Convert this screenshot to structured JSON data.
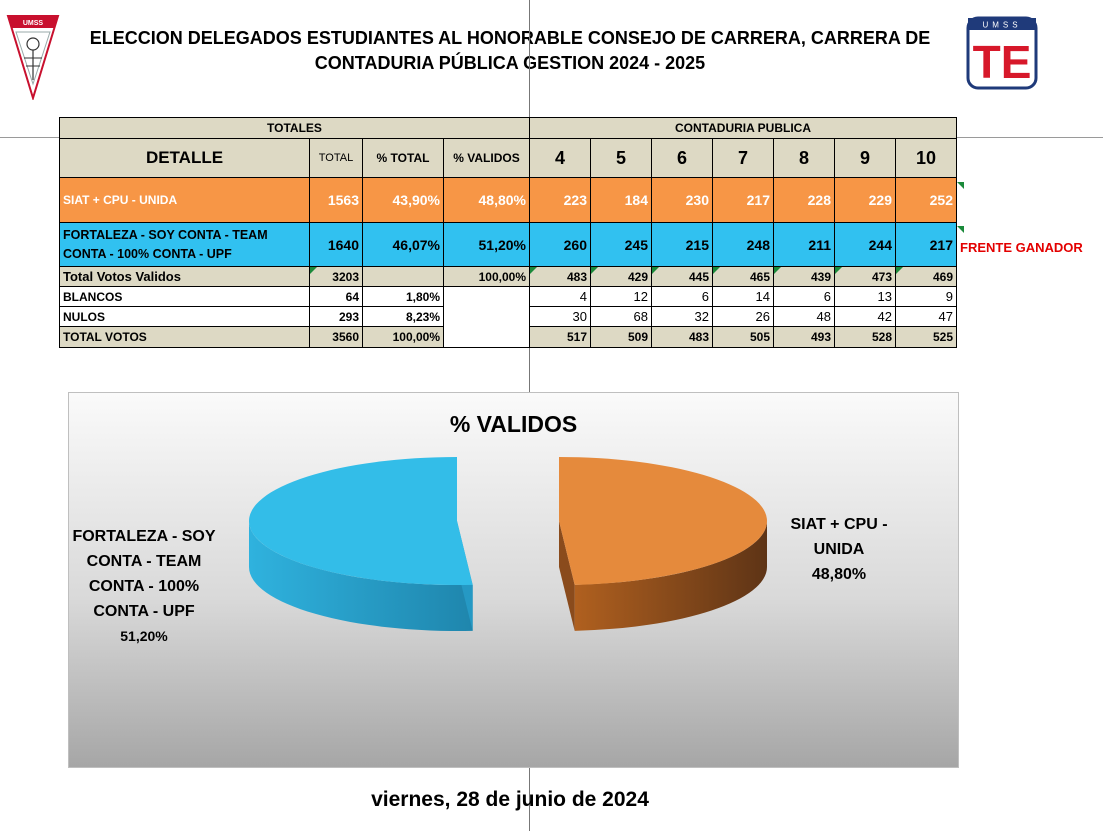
{
  "header": {
    "title_line1": "ELECCION DELEGADOS ESTUDIANTES AL HONORABLE CONSEJO DE CARRERA, CARRERA  DE",
    "title_line2": "CONTADURIA PÚBLICA GESTION 2024 - 2025",
    "left_logo_text": "UMSS",
    "right_logo_text": "UMSS",
    "right_logo_letters": "TE"
  },
  "table": {
    "group_totales": "TOTALES",
    "group_carrera": "CONTADURIA PUBLICA",
    "col_detalle": "DETALLE",
    "col_total": "TOTAL",
    "col_pct_total": "% TOTAL",
    "col_pct_validos": "% VALIDOS",
    "semesters": [
      "4",
      "5",
      "6",
      "7",
      "8",
      "9",
      "10"
    ],
    "rows": [
      {
        "label": "SIAT + CPU - UNIDA",
        "total": "1563",
        "pct_total": "43,90%",
        "pct_validos": "48,80%",
        "values": [
          "223",
          "184",
          "230",
          "217",
          "228",
          "229",
          "252"
        ]
      },
      {
        "label": "FORTALEZA - SOY CONTA - TEAM CONTA - 100% CONTA - UPF",
        "total": "1640",
        "pct_total": "46,07%",
        "pct_validos": "51,20%",
        "values": [
          "260",
          "245",
          "215",
          "248",
          "211",
          "244",
          "217"
        ]
      },
      {
        "label": "Total Votos Validos",
        "total": "3203",
        "pct_total": "",
        "pct_validos": "100,00%",
        "values": [
          "483",
          "429",
          "445",
          "465",
          "439",
          "473",
          "469"
        ]
      },
      {
        "label": "BLANCOS",
        "total": "64",
        "pct_total": "1,80%",
        "pct_validos": "",
        "values": [
          "4",
          "12",
          "6",
          "14",
          "6",
          "13",
          "9"
        ]
      },
      {
        "label": "NULOS",
        "total": "293",
        "pct_total": "8,23%",
        "pct_validos": "",
        "values": [
          "30",
          "68",
          "32",
          "26",
          "48",
          "42",
          "47"
        ]
      },
      {
        "label": "TOTAL VOTOS",
        "total": "3560",
        "pct_total": "100,00%",
        "pct_validos": "",
        "values": [
          "517",
          "509",
          "483",
          "505",
          "493",
          "528",
          "525"
        ]
      }
    ],
    "winner_note": "FRENTE GANADOR"
  },
  "chart_data": {
    "type": "pie",
    "title": "% VALIDOS",
    "slices": [
      {
        "label": "SIAT + CPU - UNIDA",
        "value": 48.8,
        "value_label": "48,80%",
        "color": "#e58a3c"
      },
      {
        "label": "FORTALEZA - SOY CONTA - TEAM CONTA - 100% CONTA - UPF",
        "value": 51.2,
        "value_label": "51,20%",
        "color": "#33bde8"
      }
    ],
    "style": "3d-exploded"
  },
  "footer": {
    "date": "viernes, 28 de junio de 2024"
  },
  "colors": {
    "orange_row": "#f79646",
    "blue_row": "#31c1f0",
    "header_bg": "#ddd9c4",
    "winner_red": "#e30000"
  }
}
